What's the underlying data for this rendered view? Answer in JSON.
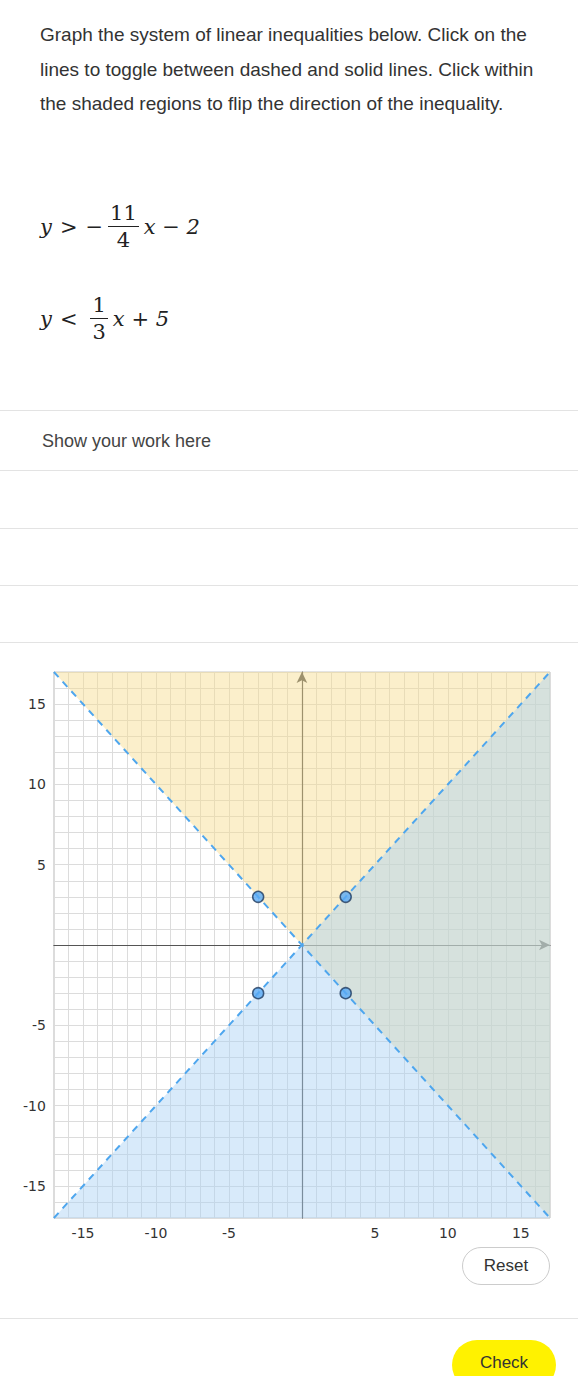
{
  "page": {
    "instructions": "Graph the system of linear inequalities below. Click on the lines to toggle between dashed and solid lines. Click within the shaded regions to flip the direction of the inequality.",
    "inequalities": [
      {
        "variable": "y",
        "operator": ">",
        "sign": "−",
        "numerator": "11",
        "denominator": "4",
        "rest": "x − 2"
      },
      {
        "variable": "y",
        "operator": "<",
        "numerator": "1",
        "denominator": "3",
        "rest": "x + 5"
      }
    ],
    "work_prompt": "Show your work here",
    "buttons": [
      "Reset",
      "Check"
    ]
  },
  "chart_data": {
    "type": "line",
    "xlim": [
      -17,
      17
    ],
    "ylim": [
      -17,
      17
    ],
    "xticks": [
      -15,
      -10,
      -5,
      5,
      10,
      15
    ],
    "yticks": [
      -15,
      -10,
      -5,
      5,
      10,
      15
    ],
    "grid": true,
    "series": [
      {
        "points": [
          [
            -3,
            3
          ],
          [
            3,
            -3
          ]
        ],
        "inequality": ">",
        "line_style": "dashed",
        "marker": "circle",
        "color": "#f7dc8c"
      },
      {
        "points": [
          [
            -3,
            -3
          ],
          [
            3,
            3
          ]
        ],
        "inequality": "<",
        "line_style": "dashed",
        "marker": "circle",
        "color": "#a9d1f5"
      }
    ]
  }
}
